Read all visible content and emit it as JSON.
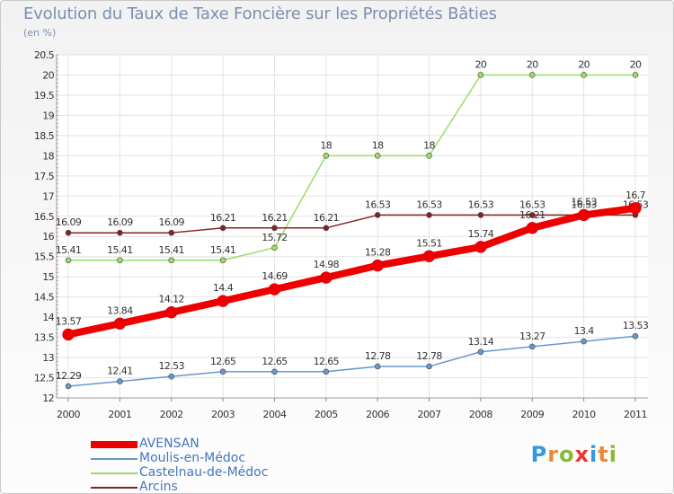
{
  "chart_data": {
    "type": "line",
    "title": "Evolution du Taux de Taxe Foncière sur les Propriétés Bâties",
    "subtitle": "(en %)",
    "xlabel": "",
    "ylabel": "",
    "x": [
      "2000",
      "2001",
      "2002",
      "2003",
      "2004",
      "2005",
      "2006",
      "2007",
      "2008",
      "2009",
      "2010",
      "2011"
    ],
    "ylim": [
      12,
      20.5
    ],
    "yticks": [
      "12",
      "12.5",
      "13",
      "13.5",
      "14",
      "14.5",
      "15",
      "15.5",
      "16",
      "16.5",
      "17",
      "17.5",
      "18",
      "18.5",
      "19",
      "19.5",
      "20",
      "20.5"
    ],
    "grid": true,
    "series": [
      {
        "name": "AVENSAN",
        "color": "#ee0000",
        "values": [
          13.57,
          13.84,
          14.12,
          14.4,
          14.69,
          14.98,
          15.28,
          15.51,
          15.74,
          16.21,
          16.53,
          16.7
        ],
        "labels": [
          "13.57",
          "13.84",
          "14.12",
          "14.4",
          "14.69",
          "14.98",
          "15.28",
          "15.51",
          "15.74",
          "16.21",
          "16.53",
          "16.7"
        ]
      },
      {
        "name": "Moulis-en-Médoc",
        "color": "#6699cc",
        "values": [
          12.29,
          12.41,
          12.53,
          12.65,
          12.65,
          12.65,
          12.78,
          12.78,
          13.14,
          13.27,
          13.4,
          13.53
        ],
        "labels": [
          "12.29",
          "12.41",
          "12.53",
          "12.65",
          "12.65",
          "12.65",
          "12.78",
          "12.78",
          "13.14",
          "13.27",
          "13.4",
          "13.53"
        ]
      },
      {
        "name": "Castelnau-de-Médoc",
        "color": "#99dd66",
        "values": [
          15.41,
          15.41,
          15.41,
          15.41,
          15.72,
          18,
          18,
          18,
          20,
          20,
          20,
          20
        ],
        "labels": [
          "15.41",
          "15.41",
          "15.41",
          "15.41",
          "15.72",
          "18",
          "18",
          "18",
          "20",
          "20",
          "20",
          "20"
        ]
      },
      {
        "name": "Arcins",
        "color": "#882222",
        "values": [
          16.09,
          16.09,
          16.09,
          16.21,
          16.21,
          16.21,
          16.53,
          16.53,
          16.53,
          16.53,
          16.53,
          16.53
        ],
        "labels": [
          "16.09",
          "16.09",
          "16.09",
          "16.21",
          "16.21",
          "16.21",
          "16.53",
          "16.53",
          "16.53",
          "16.53",
          "16.53",
          "16.53"
        ]
      }
    ]
  },
  "legend": {
    "items": [
      {
        "label": "AVENSAN",
        "color": "#ee0000"
      },
      {
        "label": "Moulis-en-Médoc",
        "color": "#6699cc"
      },
      {
        "label": "Castelnau-de-Médoc",
        "color": "#99dd66"
      },
      {
        "label": "Arcins",
        "color": "#882222"
      }
    ]
  },
  "brand": {
    "letters": [
      "P",
      "r",
      "o",
      "x",
      "i",
      "t",
      "i"
    ],
    "colors": [
      "#3399dd",
      "#ee8833",
      "#88bb33",
      "#ee3333",
      "#3399dd",
      "#ee8833",
      "#88bb33"
    ]
  }
}
